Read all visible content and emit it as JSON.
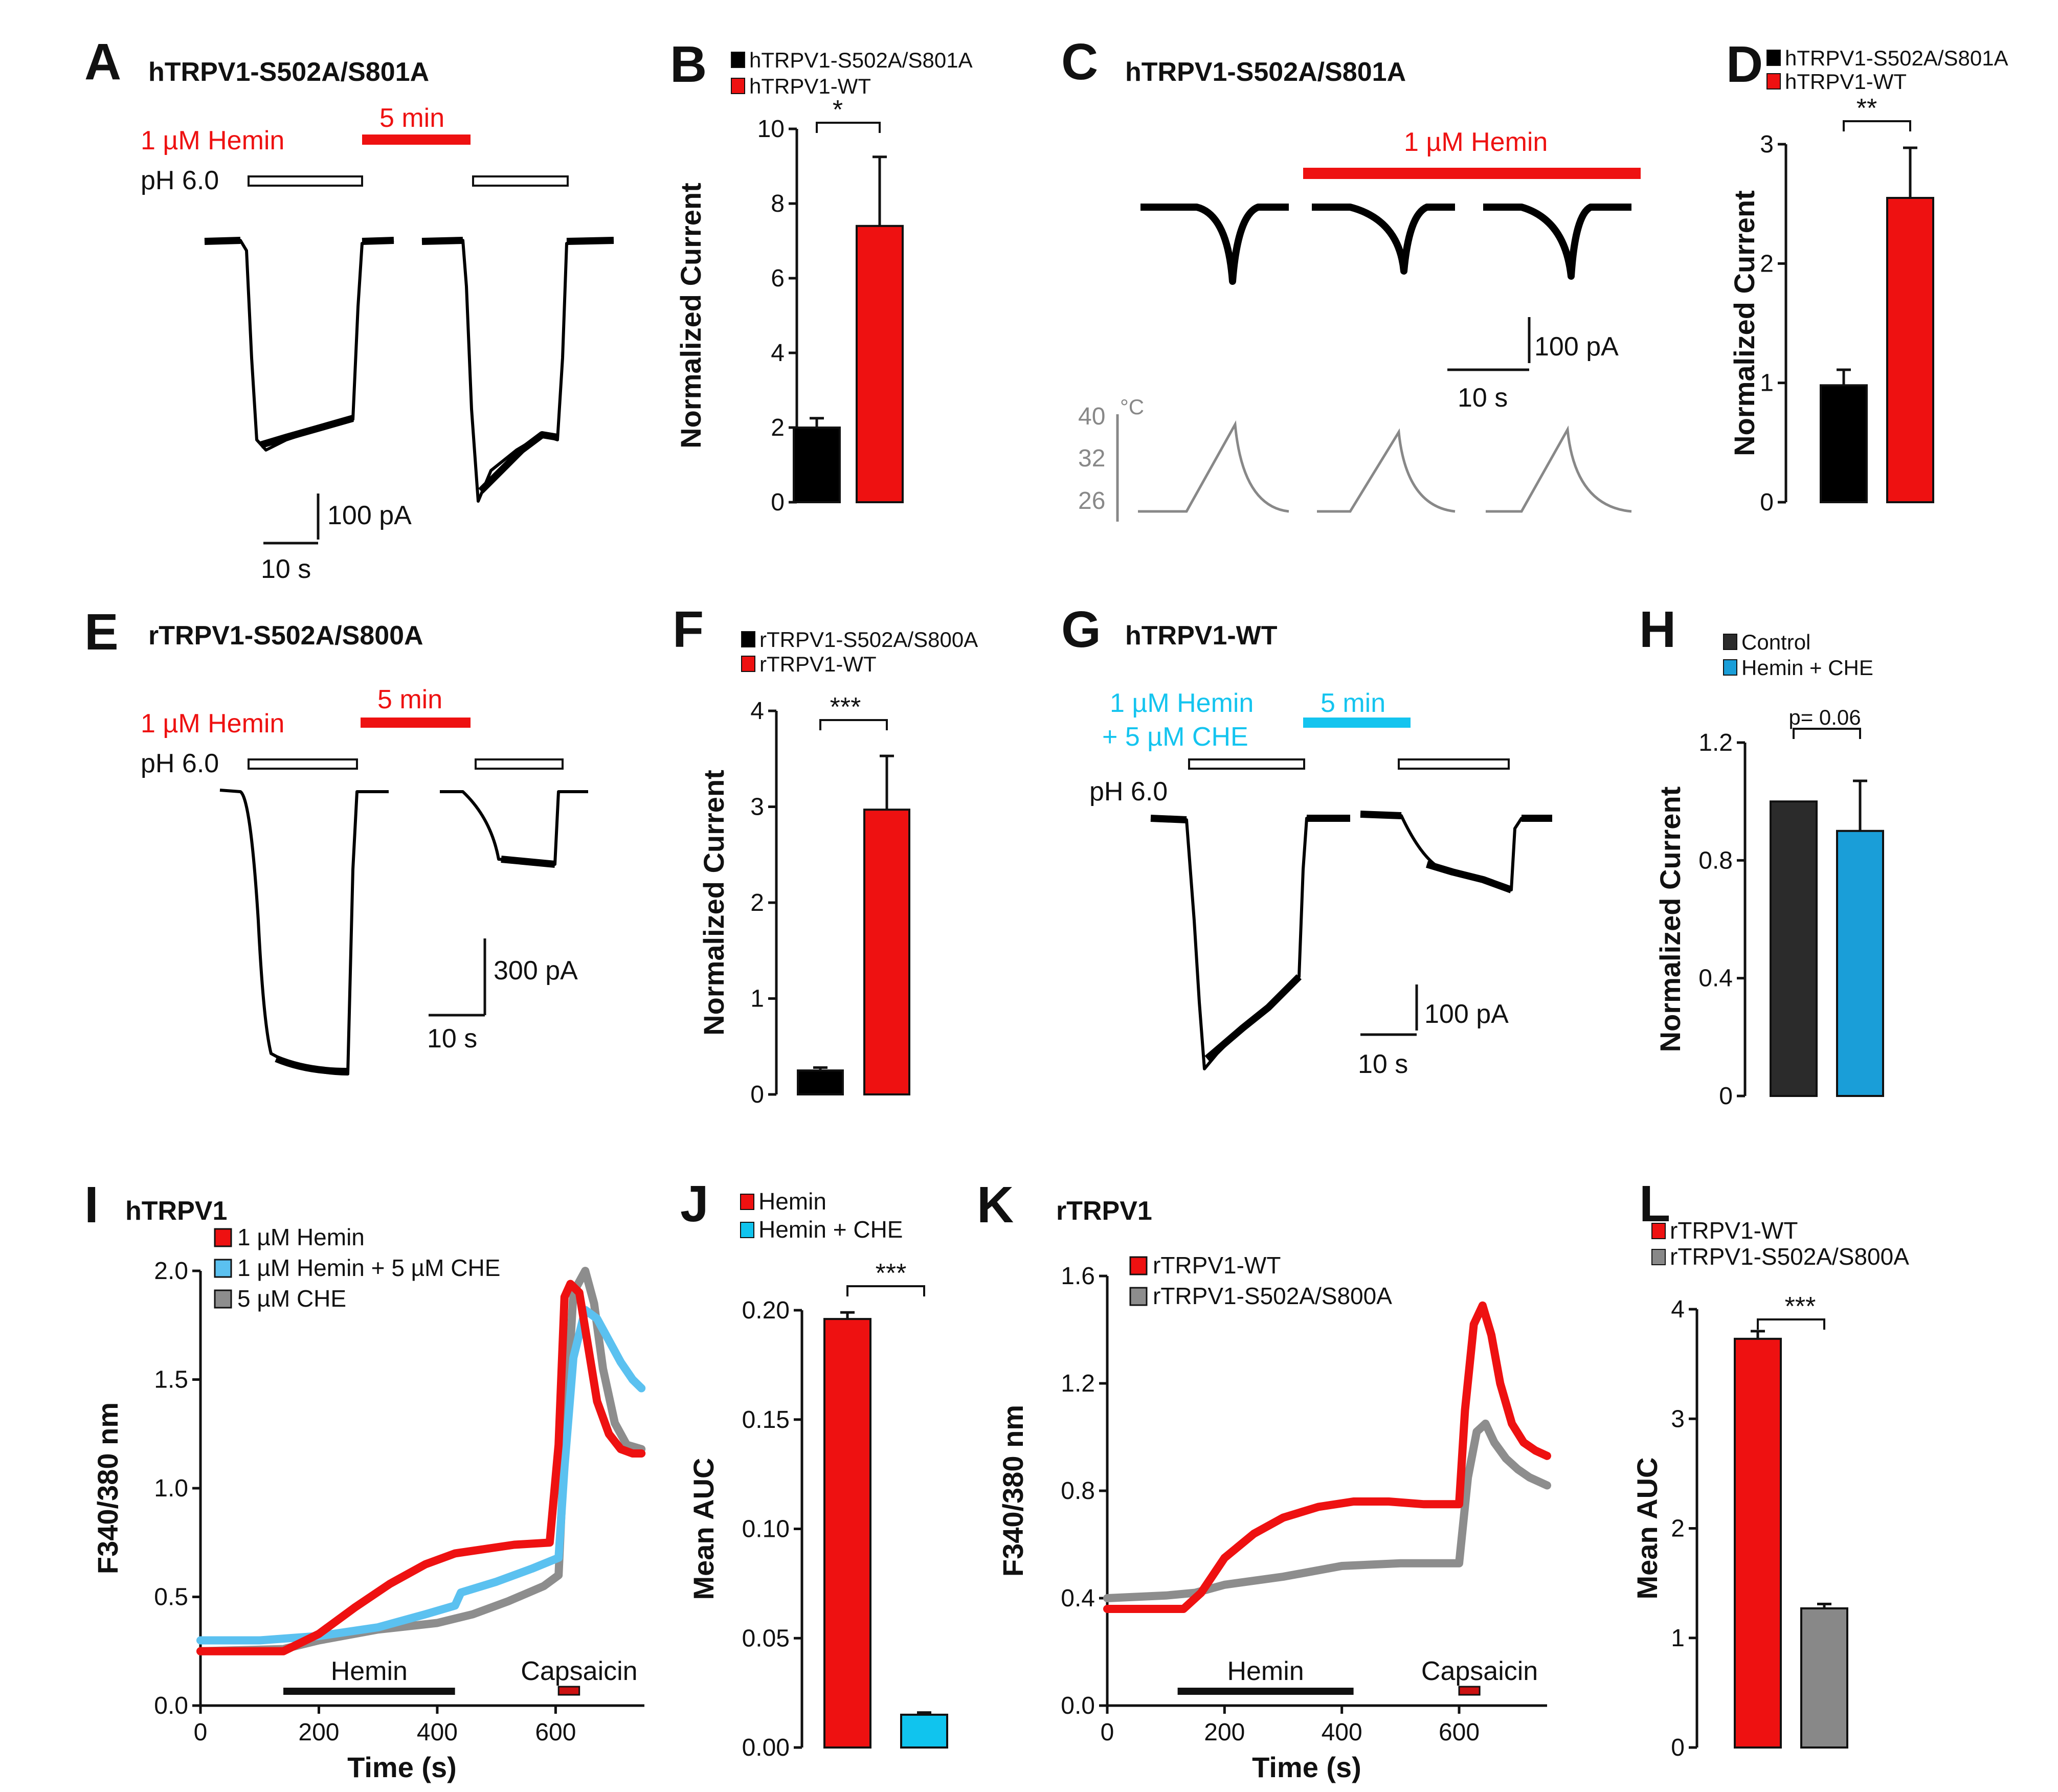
{
  "figure": {
    "A": {
      "letter": "A",
      "construct": "hTRPV1-S502A/S801A",
      "hemin_label": "1 µM Hemin",
      "interval_label": "5 min",
      "ph_label": "pH 6.0",
      "scale_current": "100 pA",
      "scale_time": "10 s"
    },
    "C": {
      "letter": "C",
      "construct": "hTRPV1-S502A/S801A",
      "hemin_label": "1 µM Hemin",
      "scale_current": "100 pA",
      "scale_time": "10 s",
      "temp_unit": "°C",
      "temp_ticks": [
        "40",
        "32",
        "26"
      ]
    },
    "E": {
      "letter": "E",
      "construct": "rTRPV1-S502A/S800A",
      "hemin_label": "1 µM Hemin",
      "interval_label": "5 min",
      "ph_label": "pH 6.0",
      "scale_current": "300 pA",
      "scale_time": "10 s"
    },
    "G": {
      "letter": "G",
      "construct": "hTRPV1-WT",
      "hemin_label_1": "1 µM Hemin",
      "hemin_label_2": "+ 5 µM CHE",
      "interval_label": "5 min",
      "ph_label": "pH 6.0",
      "scale_current": "100 pA",
      "scale_time": "10 s"
    },
    "colors": {
      "red": "#ee1111",
      "black": "#000000",
      "cyan": "#14c4ef",
      "blue": "#1a9ed8",
      "gray": "#888888",
      "dark": "#2b2b2b"
    }
  },
  "chart_data": [
    {
      "id": "B",
      "letter": "B",
      "type": "bar",
      "ylabel": "Normalized Current",
      "ylim": [
        0,
        10
      ],
      "yticks": [
        "0",
        "2",
        "4",
        "6",
        "8",
        "10"
      ],
      "categories": [
        "hTRPV1-S502A/S801A",
        "hTRPV1-WT"
      ],
      "values": [
        2.0,
        7.4
      ],
      "errors": [
        0.25,
        1.85
      ],
      "significance": "*"
    },
    {
      "id": "D",
      "letter": "D",
      "type": "bar",
      "ylabel": "Normalized Current",
      "ylim": [
        0,
        3
      ],
      "yticks": [
        "0",
        "1",
        "2",
        "3"
      ],
      "categories": [
        "hTRPV1-S502A/S801A",
        "hTRPV1-WT"
      ],
      "values": [
        0.98,
        2.55
      ],
      "errors": [
        0.13,
        0.42
      ],
      "significance": "**"
    },
    {
      "id": "F",
      "letter": "F",
      "type": "bar",
      "ylabel": "Normalized Current",
      "ylim": [
        0,
        4
      ],
      "yticks": [
        "0",
        "1",
        "2",
        "3",
        "4"
      ],
      "categories": [
        "rTRPV1-S502A/S800A",
        "rTRPV1-WT"
      ],
      "values": [
        0.25,
        2.97
      ],
      "errors": [
        0.03,
        0.56
      ],
      "significance": "***"
    },
    {
      "id": "H",
      "letter": "H",
      "type": "bar",
      "ylabel": "Normalized Current",
      "ylim": [
        0,
        1.2
      ],
      "yticks": [
        "0",
        "0.4",
        "0.8",
        "1.2"
      ],
      "categories": [
        "Control",
        "Hemin + CHE"
      ],
      "values": [
        1.0,
        0.9
      ],
      "errors": [
        0.0,
        0.17
      ],
      "significance": "p= 0.06"
    },
    {
      "id": "J",
      "letter": "J",
      "type": "bar",
      "ylabel": "Mean AUC",
      "ylim": [
        0,
        0.2
      ],
      "yticks": [
        "0.00",
        "0.05",
        "0.10",
        "0.15",
        "0.20"
      ],
      "categories": [
        "Hemin",
        "Hemin + CHE"
      ],
      "values": [
        0.196,
        0.015
      ],
      "errors": [
        0.003,
        0.001
      ],
      "significance": "***"
    },
    {
      "id": "L",
      "letter": "L",
      "type": "bar",
      "ylabel": "Mean AUC",
      "ylim": [
        0,
        4
      ],
      "yticks": [
        "0",
        "1",
        "2",
        "3",
        "4"
      ],
      "categories": [
        "rTRPV1-WT",
        "rTRPV1-S502A/S800A"
      ],
      "values": [
        3.73,
        1.27
      ],
      "errors": [
        0.07,
        0.04
      ],
      "significance": "***"
    },
    {
      "id": "I",
      "letter": "I",
      "type": "line",
      "title": "hTRPV1",
      "xlabel": "Time (s)",
      "ylabel": "F340/380 nm",
      "xlim": [
        0,
        750
      ],
      "ylim": [
        0,
        2.0
      ],
      "xticks": [
        "0",
        "200",
        "400",
        "600"
      ],
      "yticks": [
        "0.0",
        "0.5",
        "1.0",
        "1.5",
        "2.0"
      ],
      "annotations": {
        "hemin": "Hemin",
        "capsaicin": "Capsaicin"
      },
      "series": [
        {
          "name": "1 µM Hemin",
          "color": "#ee1111",
          "x": [
            0,
            140,
            200,
            260,
            320,
            380,
            430,
            480,
            530,
            590,
            605,
            615,
            625,
            640,
            655,
            670,
            690,
            710,
            730,
            745
          ],
          "y": [
            0.25,
            0.25,
            0.33,
            0.45,
            0.56,
            0.65,
            0.7,
            0.72,
            0.74,
            0.75,
            1.2,
            1.88,
            1.94,
            1.9,
            1.65,
            1.4,
            1.25,
            1.18,
            1.16,
            1.16
          ]
        },
        {
          "name": "1 µM Hemin + 5 µM CHE",
          "color": "#5bc1f0",
          "x": [
            0,
            100,
            200,
            300,
            380,
            430,
            440,
            500,
            560,
            605,
            615,
            630,
            650,
            670,
            690,
            710,
            730,
            745
          ],
          "y": [
            0.3,
            0.3,
            0.32,
            0.36,
            0.42,
            0.46,
            0.52,
            0.57,
            0.63,
            0.68,
            1.1,
            1.6,
            1.82,
            1.78,
            1.68,
            1.58,
            1.5,
            1.46
          ]
        },
        {
          "name": "5 µM CHE",
          "color": "#8d8d8d",
          "x": [
            0,
            140,
            200,
            300,
            400,
            460,
            520,
            580,
            605,
            615,
            630,
            650,
            665,
            680,
            700,
            720,
            745
          ],
          "y": [
            0.25,
            0.26,
            0.3,
            0.35,
            0.38,
            0.42,
            0.48,
            0.55,
            0.6,
            1.2,
            1.9,
            2.0,
            1.85,
            1.55,
            1.3,
            1.2,
            1.18
          ]
        }
      ]
    },
    {
      "id": "K",
      "letter": "K",
      "type": "line",
      "title": "rTRPV1",
      "xlabel": "Time (s)",
      "ylabel": "F340/380 nm",
      "xlim": [
        0,
        750
      ],
      "ylim": [
        0,
        1.6
      ],
      "xticks": [
        "0",
        "200",
        "400",
        "600"
      ],
      "yticks": [
        "0.0",
        "0.4",
        "0.8",
        "1.2",
        "1.6"
      ],
      "annotations": {
        "hemin": "Hemin",
        "capsaicin": "Capsaicin"
      },
      "series": [
        {
          "name": "rTRPV1-WT",
          "color": "#ee1111",
          "x": [
            0,
            130,
            160,
            200,
            250,
            300,
            360,
            420,
            480,
            540,
            600,
            610,
            625,
            640,
            655,
            670,
            690,
            710,
            730,
            750
          ],
          "y": [
            0.36,
            0.36,
            0.42,
            0.55,
            0.64,
            0.7,
            0.74,
            0.76,
            0.76,
            0.75,
            0.75,
            1.1,
            1.42,
            1.49,
            1.38,
            1.2,
            1.05,
            0.98,
            0.95,
            0.93
          ]
        },
        {
          "name": "rTRPV1-S502A/S800A",
          "color": "#8d8d8d",
          "x": [
            0,
            100,
            150,
            200,
            300,
            400,
            500,
            600,
            615,
            630,
            645,
            660,
            680,
            700,
            720,
            750
          ],
          "y": [
            0.4,
            0.41,
            0.42,
            0.45,
            0.48,
            0.52,
            0.53,
            0.53,
            0.85,
            1.02,
            1.05,
            0.98,
            0.92,
            0.88,
            0.85,
            0.82
          ]
        }
      ]
    }
  ]
}
